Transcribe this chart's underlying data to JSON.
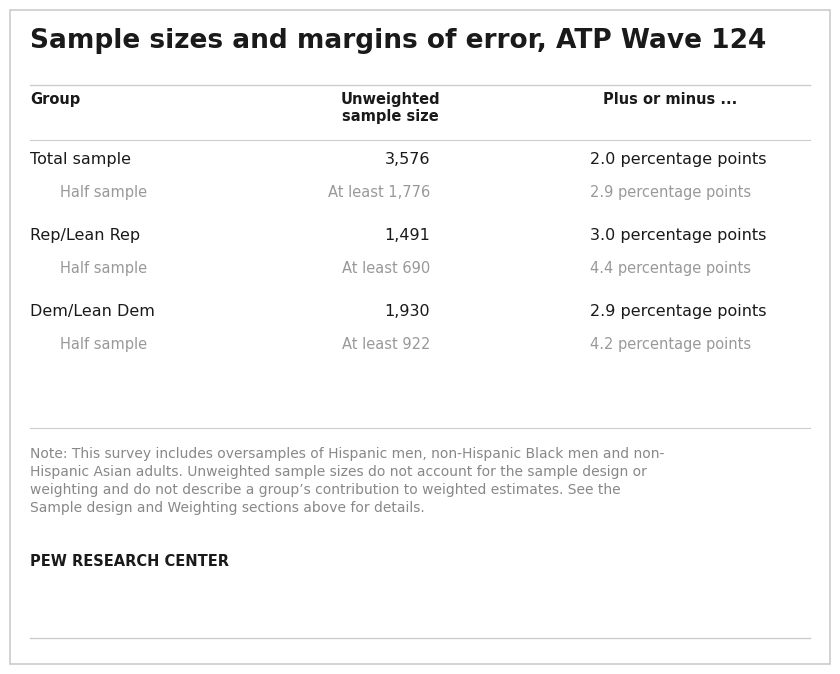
{
  "title": "Sample sizes and margins of error, ATP Wave 124",
  "background_color": "#ffffff",
  "border_color": "#cccccc",
  "header_row": [
    "Group",
    "Unweighted\nsample size",
    "Plus or minus ..."
  ],
  "rows": [
    {
      "group": "Total sample",
      "sample": "3,576",
      "moe": "2.0 percentage points",
      "is_sub": false
    },
    {
      "group": "Half sample",
      "sample": "At least 1,776",
      "moe": "2.9 percentage points",
      "is_sub": true
    },
    {
      "group": "Rep/Lean Rep",
      "sample": "1,491",
      "moe": "3.0 percentage points",
      "is_sub": false
    },
    {
      "group": "Half sample",
      "sample": "At least 690",
      "moe": "4.4 percentage points",
      "is_sub": true
    },
    {
      "group": "Dem/Lean Dem",
      "sample": "1,930",
      "moe": "2.9 percentage points",
      "is_sub": false
    },
    {
      "group": "Half sample",
      "sample": "At least 922",
      "moe": "4.2 percentage points",
      "is_sub": true
    }
  ],
  "note_line1": "Note: This survey includes oversamples of Hispanic men, non-Hispanic Black men and non-",
  "note_line2": "Hispanic Asian adults. Unweighted sample sizes do not account for the sample design or",
  "note_line3": "weighting and do not describe a group’s contribution to weighted estimates. See the",
  "note_line4": "Sample design and Weighting sections above for details.",
  "footer_text": "PEW RESEARCH CENTER",
  "main_color": "#1a1a1a",
  "sub_color": "#999999",
  "header_color": "#1a1a1a",
  "note_color": "#888888",
  "title_fontsize": 19,
  "header_fontsize": 10.5,
  "row_fontsize": 11.5,
  "sub_fontsize": 10.5,
  "note_fontsize": 10,
  "footer_fontsize": 10.5
}
